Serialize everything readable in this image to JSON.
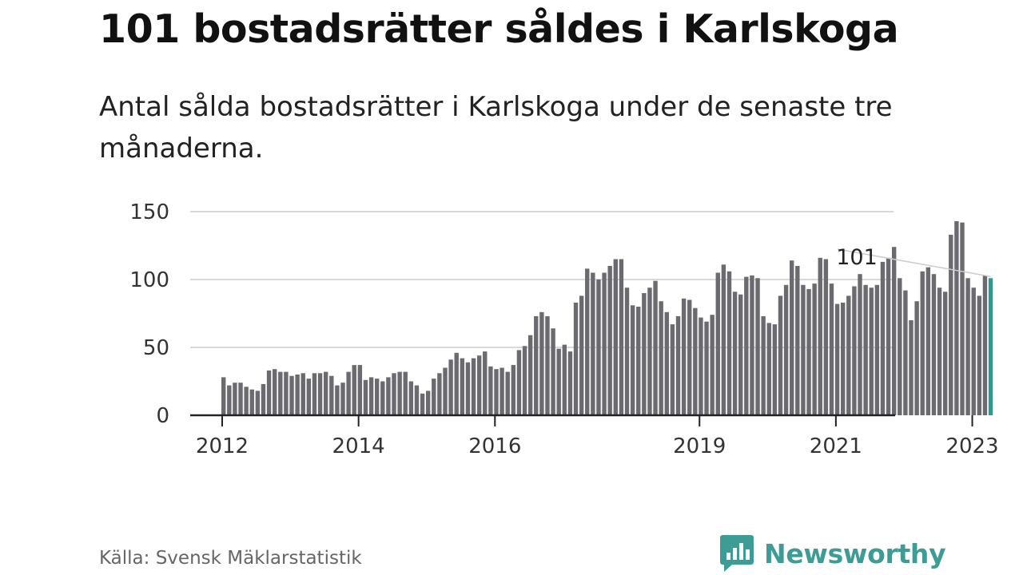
{
  "title": "101 bostadsrätter såldes i Karlskoga",
  "subtitle": "Antal sålda bostadsrätter i Karlskoga under de senaste tre månaderna.",
  "source": "Källa: Svensk Mäklarstatistik",
  "brand": {
    "name": "Newsworthy",
    "icon": "newsworthy-logo-icon",
    "color": "#3e9c97"
  },
  "chart_data": {
    "type": "bar",
    "title": "",
    "xlabel": "",
    "ylabel": "",
    "ylim": [
      0,
      150
    ],
    "yticks": [
      0,
      50,
      100,
      150
    ],
    "grid": true,
    "x_tick_labels": [
      "2012",
      "2014",
      "2016",
      "2019",
      "2021",
      "2023"
    ],
    "bar_color": "#6b6a70",
    "highlight_color": "#2a9d90",
    "highlight_label": "101",
    "series": [
      {
        "values": [
          28,
          22,
          24,
          24,
          21,
          19,
          18,
          23,
          33,
          34,
          32,
          32,
          29,
          30,
          31,
          27,
          31,
          31,
          32,
          29,
          22,
          24,
          32,
          37,
          37,
          26,
          28,
          27,
          25,
          28,
          31,
          32,
          32,
          25,
          22,
          16,
          18,
          27,
          31,
          35,
          41,
          46,
          42,
          39,
          42,
          44,
          47,
          36,
          34,
          35,
          32,
          37,
          48,
          51,
          59,
          73,
          76,
          73,
          64,
          49,
          52,
          47,
          83,
          88,
          108,
          105,
          100,
          105,
          110,
          115,
          115,
          94,
          81,
          80,
          90,
          94,
          99,
          84,
          76,
          67,
          73,
          86,
          85,
          79,
          72,
          69,
          74,
          105,
          111,
          106,
          91,
          89,
          102,
          103,
          101,
          73,
          68,
          67,
          88,
          96,
          114,
          110,
          96,
          93,
          97,
          116,
          115,
          97,
          82,
          83,
          88,
          95,
          104,
          96,
          94,
          96,
          113,
          116,
          124,
          101,
          92,
          70,
          84,
          106,
          109,
          104,
          94,
          91,
          133,
          143,
          142,
          101,
          94,
          88,
          103,
          101
        ]
      }
    ]
  }
}
